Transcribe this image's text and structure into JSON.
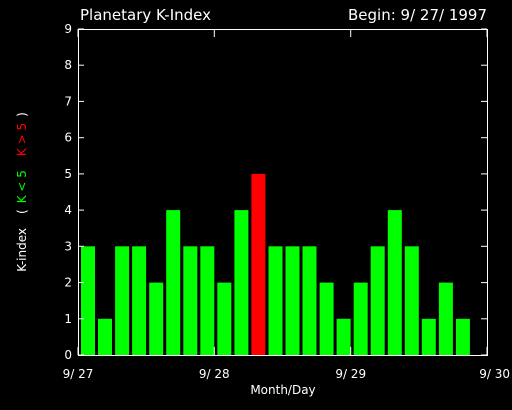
{
  "chart_data": {
    "type": "bar",
    "title": "Planetary K-Index",
    "subtitle": "Begin: 9/ 27/ 1997",
    "xlabel": "Month/Day",
    "ylabel": {
      "prefix": "K-index",
      "open": "(",
      "low": "K < 5",
      "high": "K > 5",
      "close": ")"
    },
    "ylim": [
      0,
      9
    ],
    "yticks": [
      "0",
      "1",
      "2",
      "3",
      "4",
      "5",
      "6",
      "7",
      "8",
      "9"
    ],
    "xlim": [
      0,
      24
    ],
    "xticks": [
      {
        "pos": 0,
        "label": "9/ 27"
      },
      {
        "pos": 8,
        "label": "9/ 28"
      },
      {
        "pos": 16,
        "label": "9/ 29"
      },
      {
        "pos": 24,
        "label": "9/ 30"
      }
    ],
    "threshold": 5,
    "colors": {
      "low": "#00ff00",
      "high": "#ff0000",
      "axes": "#ffffff",
      "background": "#000000"
    },
    "values": [
      3,
      1,
      3,
      3,
      2,
      4,
      3,
      3,
      2,
      4,
      5,
      3,
      3,
      3,
      2,
      1,
      2,
      3,
      4,
      3,
      1,
      2,
      1,
      0
    ]
  }
}
